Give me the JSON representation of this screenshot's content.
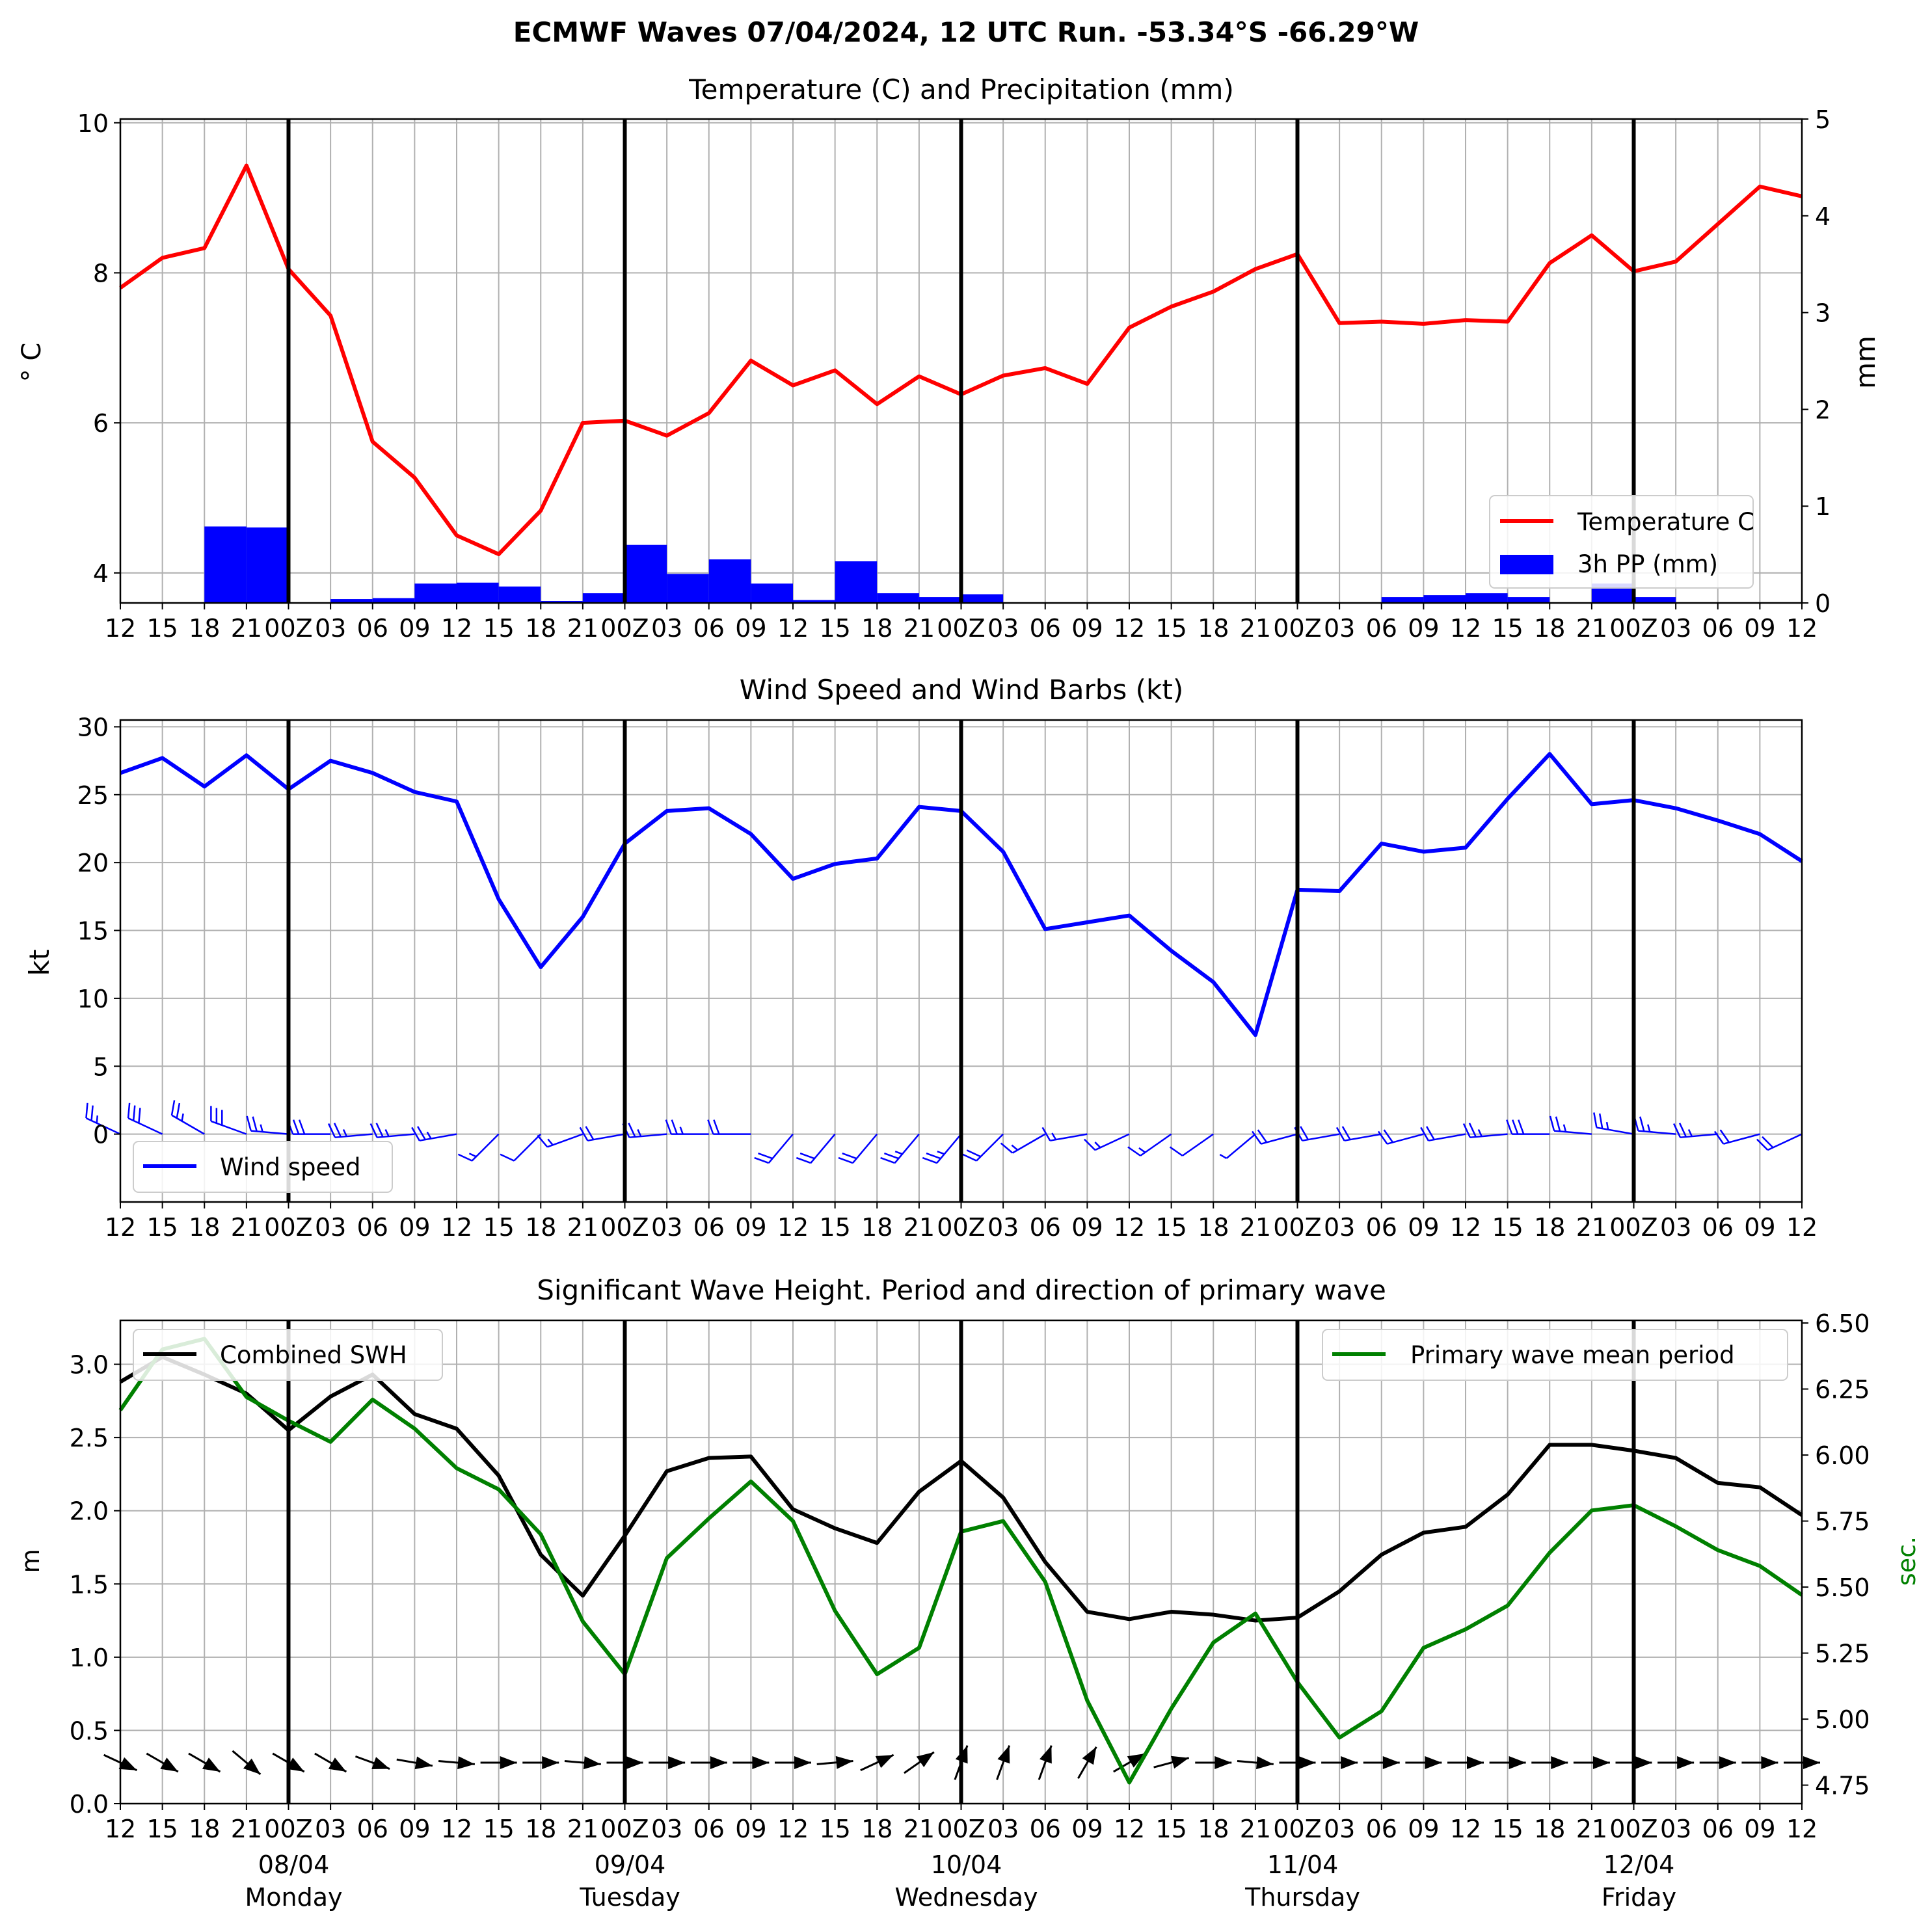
{
  "figure_title": "ECMWF Waves 07/04/2024, 12 UTC Run. -53.34°S -66.29°W",
  "x_ticks": [
    "12",
    "15",
    "18",
    "21",
    "00Z",
    "03",
    "06",
    "09",
    "12",
    "15",
    "18",
    "21",
    "00Z",
    "03",
    "06",
    "09",
    "12",
    "15",
    "18",
    "21",
    "00Z",
    "03",
    "06",
    "09",
    "12",
    "15",
    "18",
    "21",
    "00Z",
    "03",
    "06",
    "09",
    "12",
    "15",
    "18",
    "21",
    "00Z",
    "03",
    "06",
    "09",
    "12"
  ],
  "day_labels": [
    {
      "index": 4,
      "date": "08/04",
      "weekday": "Monday"
    },
    {
      "index": 12,
      "date": "09/04",
      "weekday": "Tuesday"
    },
    {
      "index": 20,
      "date": "10/04",
      "weekday": "Wednesday"
    },
    {
      "index": 28,
      "date": "11/04",
      "weekday": "Thursday"
    },
    {
      "index": 36,
      "date": "12/04",
      "weekday": "Friday"
    }
  ],
  "colors": {
    "temperature": "#ff0000",
    "precip": "#0000ff",
    "wind": "#0000ff",
    "swh": "#000000",
    "period": "#008000",
    "grid": "#b0b0b0"
  },
  "chart_data": [
    {
      "type": "line",
      "title": "Temperature (C) and Precipitation (mm)",
      "ylabel": "$^\\circ$C",
      "ylabel_display": "° C",
      "y2label": "mm",
      "ylim": [
        3.6,
        10.05
      ],
      "yticks": [
        4,
        6,
        8,
        10
      ],
      "y2lim": [
        0,
        5
      ],
      "y2ticks": [
        0,
        1,
        2,
        3,
        4,
        5
      ],
      "grid": true,
      "legend": "lower-right",
      "series": [
        {
          "name": "Temperature C",
          "axis": "left",
          "kind": "line",
          "values": [
            7.8,
            8.2,
            8.33,
            9.43,
            8.05,
            7.43,
            5.75,
            5.27,
            4.5,
            4.25,
            4.83,
            6.0,
            6.03,
            5.83,
            6.13,
            6.83,
            6.5,
            6.7,
            6.25,
            6.62,
            6.38,
            6.63,
            6.73,
            6.52,
            7.27,
            7.55,
            7.75,
            8.05,
            8.25,
            7.33,
            7.35,
            7.32,
            7.37,
            7.35,
            8.13,
            8.5,
            8.02,
            8.15,
            8.65,
            9.15,
            9.02
          ]
        },
        {
          "name": "3h PP (mm)",
          "axis": "right",
          "kind": "bar",
          "values": [
            0,
            0,
            0.79,
            0.78,
            0,
            0.04,
            0.05,
            0.2,
            0.21,
            0.17,
            0.02,
            0.1,
            0.6,
            0.3,
            0.45,
            0.2,
            0.03,
            0.43,
            0.1,
            0.06,
            0.09,
            0,
            0,
            0,
            0,
            0,
            0,
            0,
            0,
            0,
            0.06,
            0.08,
            0.1,
            0.06,
            0,
            0.2,
            0.06,
            0,
            0,
            0
          ]
        }
      ]
    },
    {
      "type": "line",
      "title": "Wind Speed and Wind Barbs (kt)",
      "ylabel": "kt",
      "ylim": [
        -5,
        30.5
      ],
      "yticks": [
        0,
        5,
        10,
        15,
        20,
        25,
        30
      ],
      "grid": true,
      "legend": "lower-left",
      "series": [
        {
          "name": "Wind speed",
          "values": [
            26.6,
            27.7,
            25.6,
            27.9,
            25.4,
            27.5,
            26.6,
            25.2,
            24.5,
            17.3,
            12.3,
            16.0,
            21.4,
            23.8,
            24.0,
            22.1,
            18.8,
            19.9,
            20.3,
            24.1,
            23.8,
            20.8,
            15.1,
            15.6,
            16.1,
            13.5,
            11.2,
            7.3,
            18.0,
            17.9,
            21.4,
            20.8,
            21.1,
            24.7,
            28.0,
            24.3,
            24.6,
            24.0,
            23.1,
            22.1,
            20.1
          ]
        }
      ],
      "barb_direction_deg": [
        295,
        295,
        300,
        290,
        275,
        270,
        265,
        265,
        260,
        225,
        225,
        250,
        260,
        265,
        270,
        270,
        220,
        220,
        220,
        220,
        220,
        225,
        240,
        260,
        245,
        235,
        235,
        230,
        255,
        260,
        260,
        255,
        260,
        265,
        270,
        275,
        280,
        275,
        265,
        255,
        245
      ]
    },
    {
      "type": "line",
      "title": "Significant Wave Height. Period and direction of primary wave",
      "ylabel": "m",
      "y2label": "sec.",
      "ylim": [
        0,
        3.3
      ],
      "yticks": [
        0.0,
        0.5,
        1.0,
        1.5,
        2.0,
        2.5,
        3.0
      ],
      "y2lim": [
        4.68,
        6.51
      ],
      "y2ticks": [
        4.75,
        5.0,
        5.25,
        5.5,
        5.75,
        6.0,
        6.25,
        6.5
      ],
      "grid": true,
      "legend_left": "upper-left",
      "legend_right": "upper-right",
      "series": [
        {
          "name": "Combined SWH",
          "axis": "left",
          "values": [
            2.88,
            3.05,
            2.93,
            2.8,
            2.55,
            2.78,
            2.93,
            2.66,
            2.56,
            2.24,
            1.7,
            1.42,
            1.83,
            2.27,
            2.36,
            2.37,
            2.01,
            1.88,
            1.78,
            2.13,
            2.34,
            2.09,
            1.65,
            1.31,
            1.26,
            1.31,
            1.29,
            1.25,
            1.27,
            1.45,
            1.7,
            1.85,
            1.89,
            2.11,
            2.45,
            2.45,
            2.41,
            2.36,
            2.19,
            2.16,
            1.97
          ]
        },
        {
          "name": "Primary wave mean period",
          "axis": "right",
          "values": [
            6.17,
            6.4,
            6.44,
            6.22,
            6.13,
            6.05,
            6.21,
            6.1,
            5.95,
            5.87,
            5.7,
            5.37,
            5.17,
            5.61,
            5.76,
            5.9,
            5.75,
            5.41,
            5.17,
            5.27,
            5.71,
            5.75,
            5.52,
            5.07,
            4.76,
            5.04,
            5.29,
            5.4,
            5.14,
            4.93,
            5.03,
            5.27,
            5.34,
            5.43,
            5.63,
            5.79,
            5.81,
            5.73,
            5.64,
            5.58,
            5.47
          ]
        }
      ],
      "wave_direction_deg": [
        295,
        300,
        300,
        310,
        300,
        300,
        290,
        280,
        275,
        270,
        270,
        275,
        270,
        270,
        270,
        270,
        270,
        265,
        245,
        235,
        200,
        200,
        200,
        210,
        240,
        255,
        270,
        275,
        270,
        270,
        270,
        270,
        270,
        270,
        270,
        270,
        270,
        270,
        270,
        270,
        270
      ]
    }
  ]
}
